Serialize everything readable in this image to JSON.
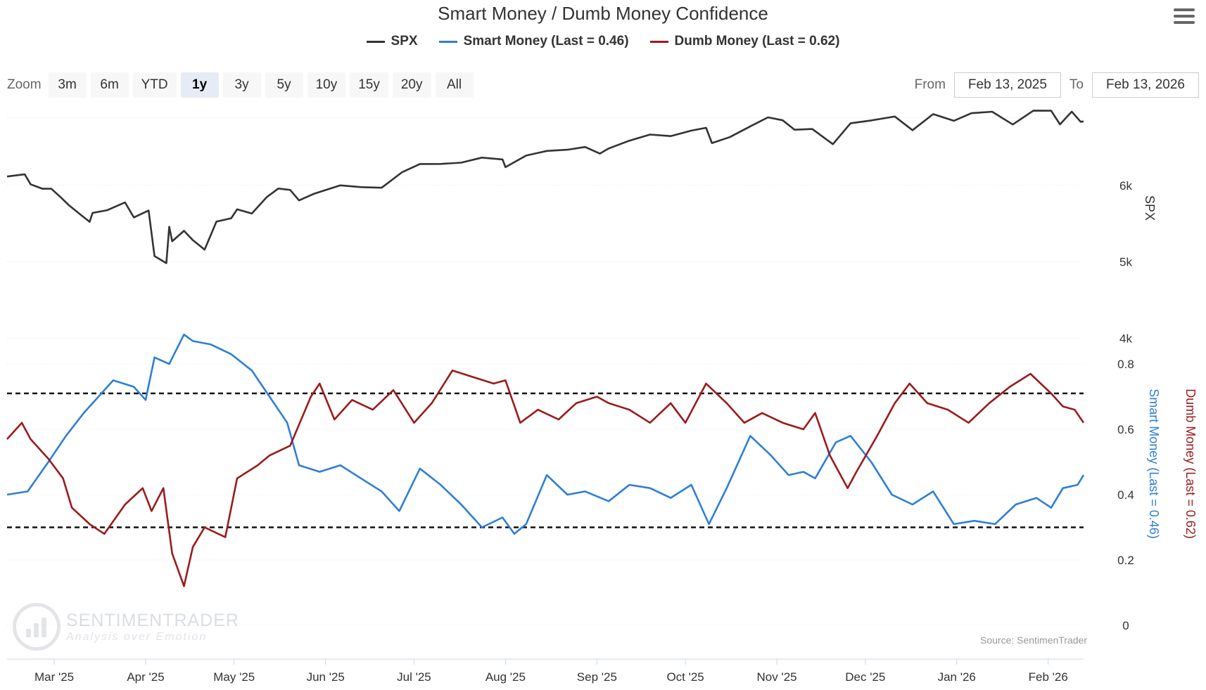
{
  "title": "Smart Money / Dumb Money Confidence",
  "menu": {
    "icon": "hamburger-menu-icon"
  },
  "legend": [
    {
      "label": "SPX",
      "color": "#333333"
    },
    {
      "label": "Smart Money (Last = 0.46)",
      "color": "#2e7fd6"
    },
    {
      "label": "Dumb Money (Last = 0.62)",
      "color": "#9b1b1b"
    }
  ],
  "zoom": {
    "label": "Zoom",
    "buttons": [
      "3m",
      "6m",
      "YTD",
      "1y",
      "3y",
      "5y",
      "10y",
      "15y",
      "20y",
      "All"
    ],
    "active": "1y"
  },
  "range": {
    "from_label": "From",
    "from_value": "Feb 13, 2025",
    "to_label": "To",
    "to_value": "Feb 13, 2026"
  },
  "watermark": {
    "name": "SENTIMENTRADER",
    "tagline": "Analysis over Emotion"
  },
  "credits": "Source: SentimenTrader",
  "chart_data": {
    "type": "line",
    "x_ticks": [
      "Mar '25",
      "Apr '25",
      "May '25",
      "Jun '25",
      "Jul '25",
      "Aug '25",
      "Sep '25",
      "Oct '25",
      "Nov '25",
      "Dec '25",
      "Jan '26",
      "Feb '26"
    ],
    "x_range": [
      "2025-02-13",
      "2026-02-13"
    ],
    "grid": true,
    "axes": {
      "spx": {
        "title": "SPX",
        "ticks": [
          "4k",
          "5k",
          "6k"
        ],
        "range": [
          3000,
          7000
        ]
      },
      "confidence": {
        "ticks": [
          "0",
          "0.2",
          "0.4",
          "0.6",
          "0.8"
        ],
        "range": [
          0,
          1
        ]
      },
      "smart_title": "Smart Money (Last = 0.46)",
      "dumb_title": "Dumb Money (Last = 0.62)"
    },
    "reference_lines": [
      0.3,
      0.71
    ],
    "series": [
      {
        "name": "SPX",
        "color": "#333333",
        "points": [
          [
            "2025-02-13",
            6115
          ],
          [
            "2025-02-19",
            6144
          ],
          [
            "2025-02-21",
            6013
          ],
          [
            "2025-02-25",
            5955
          ],
          [
            "2025-02-28",
            5955
          ],
          [
            "2025-03-03",
            5850
          ],
          [
            "2025-03-06",
            5739
          ],
          [
            "2025-03-10",
            5614
          ],
          [
            "2025-03-13",
            5522
          ],
          [
            "2025-03-14",
            5639
          ],
          [
            "2025-03-19",
            5675
          ],
          [
            "2025-03-25",
            5776
          ],
          [
            "2025-03-28",
            5580
          ],
          [
            "2025-04-02",
            5670
          ],
          [
            "2025-04-04",
            5074
          ],
          [
            "2025-04-08",
            4982
          ],
          [
            "2025-04-09",
            5457
          ],
          [
            "2025-04-10",
            5268
          ],
          [
            "2025-04-14",
            5405
          ],
          [
            "2025-04-17",
            5282
          ],
          [
            "2025-04-21",
            5158
          ],
          [
            "2025-04-25",
            5525
          ],
          [
            "2025-04-30",
            5569
          ],
          [
            "2025-05-02",
            5686
          ],
          [
            "2025-05-07",
            5631
          ],
          [
            "2025-05-12",
            5844
          ],
          [
            "2025-05-16",
            5958
          ],
          [
            "2025-05-20",
            5940
          ],
          [
            "2025-05-23",
            5803
          ],
          [
            "2025-05-28",
            5888
          ],
          [
            "2025-06-06",
            6000
          ],
          [
            "2025-06-13",
            5977
          ],
          [
            "2025-06-20",
            5968
          ],
          [
            "2025-06-27",
            6173
          ],
          [
            "2025-07-03",
            6279
          ],
          [
            "2025-07-10",
            6280
          ],
          [
            "2025-07-17",
            6297
          ],
          [
            "2025-07-24",
            6363
          ],
          [
            "2025-07-31",
            6339
          ],
          [
            "2025-08-01",
            6238
          ],
          [
            "2025-08-08",
            6389
          ],
          [
            "2025-08-15",
            6450
          ],
          [
            "2025-08-22",
            6466
          ],
          [
            "2025-08-28",
            6502
          ],
          [
            "2025-09-02",
            6415
          ],
          [
            "2025-09-05",
            6482
          ],
          [
            "2025-09-12",
            6584
          ],
          [
            "2025-09-19",
            6664
          ],
          [
            "2025-09-26",
            6644
          ],
          [
            "2025-10-03",
            6716
          ],
          [
            "2025-10-08",
            6753
          ],
          [
            "2025-10-10",
            6553
          ],
          [
            "2025-10-16",
            6630
          ],
          [
            "2025-10-24",
            6791
          ],
          [
            "2025-10-29",
            6890
          ],
          [
            "2025-11-03",
            6851
          ],
          [
            "2025-11-07",
            6728
          ],
          [
            "2025-11-13",
            6737
          ],
          [
            "2025-11-20",
            6538
          ],
          [
            "2025-11-26",
            6812
          ],
          [
            "2025-12-03",
            6849
          ],
          [
            "2025-12-11",
            6901
          ],
          [
            "2025-12-17",
            6721
          ],
          [
            "2025-12-24",
            6932
          ],
          [
            "2025-12-31",
            6845
          ],
          [
            "2026-01-06",
            6944
          ],
          [
            "2026-01-13",
            6963
          ],
          [
            "2026-01-20",
            6796
          ],
          [
            "2026-01-27",
            6978
          ],
          [
            "2026-02-02",
            6976
          ],
          [
            "2026-02-05",
            6798
          ],
          [
            "2026-02-09",
            6964
          ],
          [
            "2026-02-12",
            6832
          ],
          [
            "2026-02-13",
            6836
          ]
        ]
      },
      {
        "name": "Smart Money (Last = 0.46)",
        "color": "#2e7fd6",
        "points": [
          [
            "2025-02-13",
            0.4
          ],
          [
            "2025-02-20",
            0.41
          ],
          [
            "2025-02-27",
            0.5
          ],
          [
            "2025-03-05",
            0.58
          ],
          [
            "2025-03-11",
            0.65
          ],
          [
            "2025-03-18",
            0.72
          ],
          [
            "2025-03-21",
            0.75
          ],
          [
            "2025-03-28",
            0.73
          ],
          [
            "2025-04-01",
            0.69
          ],
          [
            "2025-04-04",
            0.82
          ],
          [
            "2025-04-09",
            0.8
          ],
          [
            "2025-04-14",
            0.89
          ],
          [
            "2025-04-17",
            0.87
          ],
          [
            "2025-04-23",
            0.86
          ],
          [
            "2025-04-30",
            0.83
          ],
          [
            "2025-05-07",
            0.78
          ],
          [
            "2025-05-13",
            0.7
          ],
          [
            "2025-05-19",
            0.62
          ],
          [
            "2025-05-23",
            0.49
          ],
          [
            "2025-05-30",
            0.47
          ],
          [
            "2025-06-06",
            0.49
          ],
          [
            "2025-06-13",
            0.45
          ],
          [
            "2025-06-20",
            0.41
          ],
          [
            "2025-06-26",
            0.35
          ],
          [
            "2025-07-03",
            0.48
          ],
          [
            "2025-07-10",
            0.43
          ],
          [
            "2025-07-17",
            0.37
          ],
          [
            "2025-07-24",
            0.3
          ],
          [
            "2025-07-31",
            0.33
          ],
          [
            "2025-08-04",
            0.28
          ],
          [
            "2025-08-08",
            0.31
          ],
          [
            "2025-08-15",
            0.46
          ],
          [
            "2025-08-22",
            0.4
          ],
          [
            "2025-08-28",
            0.41
          ],
          [
            "2025-09-05",
            0.38
          ],
          [
            "2025-09-12",
            0.43
          ],
          [
            "2025-09-19",
            0.42
          ],
          [
            "2025-09-26",
            0.39
          ],
          [
            "2025-10-03",
            0.43
          ],
          [
            "2025-10-09",
            0.31
          ],
          [
            "2025-10-15",
            0.42
          ],
          [
            "2025-10-23",
            0.58
          ],
          [
            "2025-10-30",
            0.52
          ],
          [
            "2025-11-05",
            0.46
          ],
          [
            "2025-11-10",
            0.47
          ],
          [
            "2025-11-14",
            0.45
          ],
          [
            "2025-11-21",
            0.56
          ],
          [
            "2025-11-26",
            0.58
          ],
          [
            "2025-12-03",
            0.5
          ],
          [
            "2025-12-10",
            0.4
          ],
          [
            "2025-12-17",
            0.37
          ],
          [
            "2025-12-24",
            0.41
          ],
          [
            "2025-12-31",
            0.31
          ],
          [
            "2026-01-07",
            0.32
          ],
          [
            "2026-01-14",
            0.31
          ],
          [
            "2026-01-21",
            0.37
          ],
          [
            "2026-01-28",
            0.39
          ],
          [
            "2026-02-02",
            0.36
          ],
          [
            "2026-02-06",
            0.42
          ],
          [
            "2026-02-11",
            0.43
          ],
          [
            "2026-02-13",
            0.46
          ]
        ]
      },
      {
        "name": "Dumb Money (Last = 0.62)",
        "color": "#9b1b1b",
        "points": [
          [
            "2025-02-13",
            0.57
          ],
          [
            "2025-02-18",
            0.62
          ],
          [
            "2025-02-21",
            0.57
          ],
          [
            "2025-02-27",
            0.51
          ],
          [
            "2025-03-04",
            0.45
          ],
          [
            "2025-03-07",
            0.36
          ],
          [
            "2025-03-13",
            0.31
          ],
          [
            "2025-03-18",
            0.28
          ],
          [
            "2025-03-25",
            0.37
          ],
          [
            "2025-03-31",
            0.42
          ],
          [
            "2025-04-03",
            0.35
          ],
          [
            "2025-04-07",
            0.42
          ],
          [
            "2025-04-10",
            0.22
          ],
          [
            "2025-04-14",
            0.12
          ],
          [
            "2025-04-17",
            0.24
          ],
          [
            "2025-04-21",
            0.3
          ],
          [
            "2025-04-28",
            0.27
          ],
          [
            "2025-05-02",
            0.45
          ],
          [
            "2025-05-09",
            0.49
          ],
          [
            "2025-05-13",
            0.52
          ],
          [
            "2025-05-20",
            0.55
          ],
          [
            "2025-05-27",
            0.7
          ],
          [
            "2025-05-30",
            0.74
          ],
          [
            "2025-06-04",
            0.63
          ],
          [
            "2025-06-10",
            0.69
          ],
          [
            "2025-06-17",
            0.66
          ],
          [
            "2025-06-24",
            0.72
          ],
          [
            "2025-07-01",
            0.62
          ],
          [
            "2025-07-07",
            0.68
          ],
          [
            "2025-07-14",
            0.78
          ],
          [
            "2025-07-21",
            0.76
          ],
          [
            "2025-07-28",
            0.74
          ],
          [
            "2025-08-01",
            0.75
          ],
          [
            "2025-08-06",
            0.62
          ],
          [
            "2025-08-12",
            0.66
          ],
          [
            "2025-08-19",
            0.63
          ],
          [
            "2025-08-25",
            0.68
          ],
          [
            "2025-09-01",
            0.7
          ],
          [
            "2025-09-05",
            0.68
          ],
          [
            "2025-09-12",
            0.66
          ],
          [
            "2025-09-19",
            0.62
          ],
          [
            "2025-09-26",
            0.68
          ],
          [
            "2025-10-01",
            0.62
          ],
          [
            "2025-10-08",
            0.74
          ],
          [
            "2025-10-15",
            0.68
          ],
          [
            "2025-10-21",
            0.62
          ],
          [
            "2025-10-27",
            0.65
          ],
          [
            "2025-11-03",
            0.62
          ],
          [
            "2025-11-10",
            0.6
          ],
          [
            "2025-11-14",
            0.65
          ],
          [
            "2025-11-19",
            0.52
          ],
          [
            "2025-11-25",
            0.42
          ],
          [
            "2025-11-28",
            0.47
          ],
          [
            "2025-12-05",
            0.58
          ],
          [
            "2025-12-11",
            0.68
          ],
          [
            "2025-12-16",
            0.74
          ],
          [
            "2025-12-22",
            0.68
          ],
          [
            "2025-12-29",
            0.66
          ],
          [
            "2026-01-05",
            0.62
          ],
          [
            "2026-01-12",
            0.68
          ],
          [
            "2026-01-19",
            0.73
          ],
          [
            "2026-01-26",
            0.77
          ],
          [
            "2026-02-02",
            0.71
          ],
          [
            "2026-02-06",
            0.67
          ],
          [
            "2026-02-10",
            0.66
          ],
          [
            "2026-02-13",
            0.62
          ]
        ]
      }
    ]
  }
}
